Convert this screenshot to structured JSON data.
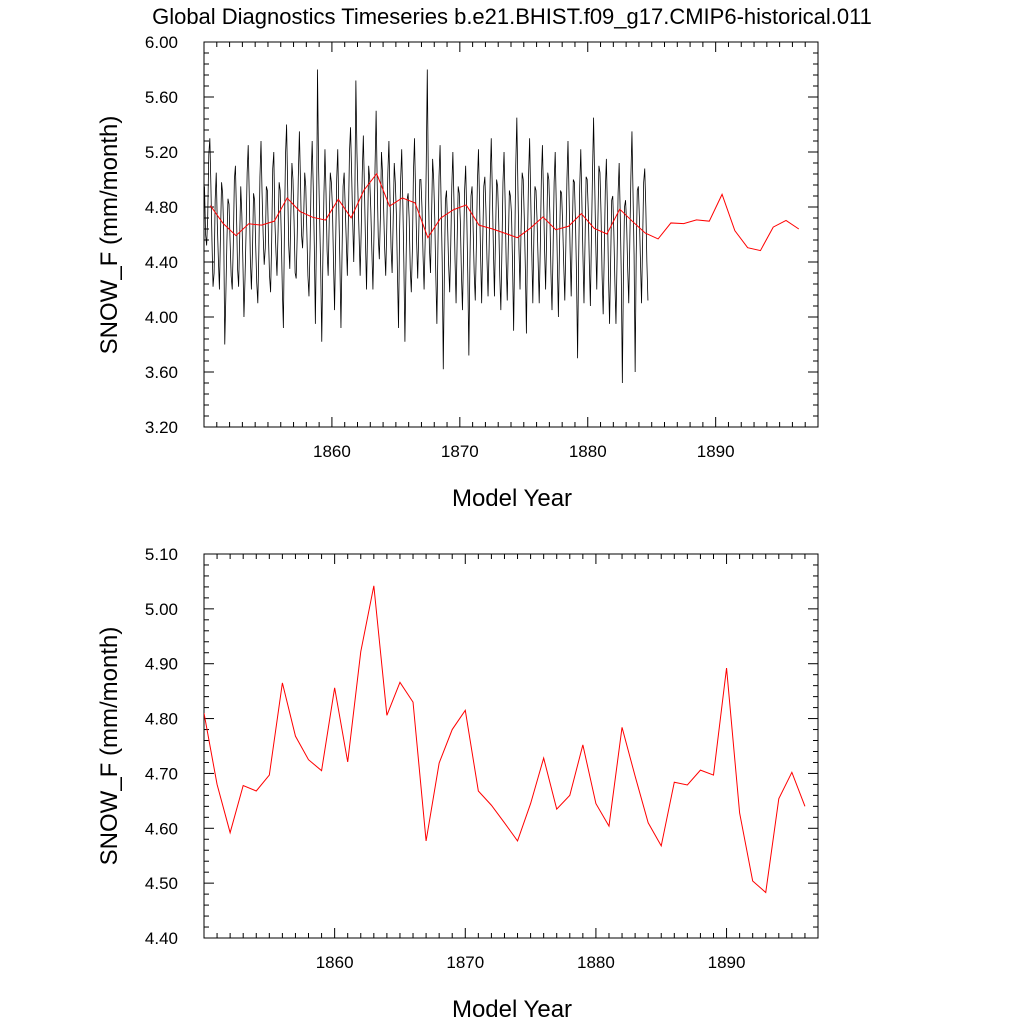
{
  "page": {
    "title": "Global Diagnostics Timeseries b.e21.BHIST.f09_g17.CMIP6-historical.011"
  },
  "colors": {
    "monthly_line": "#000000",
    "annual_line": "#ff0000",
    "axes": "#000000",
    "background": "#ffffff"
  },
  "chart_data": [
    {
      "type": "line",
      "title": "",
      "xlabel": "Model Year",
      "ylabel": "SNOW_F (mm/month)",
      "xlim": [
        1850,
        1898
      ],
      "ylim": [
        3.2,
        6.0
      ],
      "x_ticks": [
        1860,
        1870,
        1880,
        1890
      ],
      "y_ticks": [
        3.2,
        3.6,
        4.0,
        4.4,
        4.8,
        5.2,
        5.6,
        6.0
      ],
      "y_tick_labels": [
        "3.20",
        "3.60",
        "4.00",
        "4.40",
        "4.80",
        "5.20",
        "5.60",
        "6.00"
      ],
      "x_tick_labels": [
        "1860",
        "1870",
        "1880",
        "1890"
      ],
      "grid": false,
      "series": [
        {
          "color": "#000000",
          "monthly": true,
          "x_start": 1850.04,
          "x_step": 0.08333,
          "note_shape": "seasonal cycle",
          "values": [
            4.95,
            4.6,
            4.52,
            4.73,
            5.18,
            5.3,
            4.95,
            4.55,
            4.22,
            4.32,
            4.85,
            5.05,
            4.68,
            4.42,
            4.2,
            4.6,
            4.98,
            4.9,
            4.62,
            3.8,
            4.15,
            4.55,
            4.86,
            4.82,
            4.55,
            4.3,
            4.2,
            4.52,
            5.0,
            5.1,
            4.75,
            4.35,
            4.22,
            4.58,
            4.95,
            4.75,
            4.4,
            4.0,
            4.28,
            4.62,
            5.05,
            5.25,
            4.88,
            4.42,
            4.2,
            4.48,
            4.9,
            4.85,
            4.52,
            4.25,
            4.1,
            4.48,
            5.02,
            5.28,
            4.9,
            4.6,
            4.38,
            4.5,
            4.95,
            4.92,
            4.58,
            4.3,
            4.18,
            4.55,
            5.08,
            5.2,
            4.7,
            4.48,
            4.3,
            4.62,
            4.98,
            4.92,
            4.6,
            4.2,
            3.92,
            4.65,
            5.18,
            5.4,
            4.95,
            4.52,
            4.35,
            4.75,
            5.12,
            5.0,
            4.7,
            4.32,
            4.28,
            4.6,
            5.02,
            5.35,
            5.0,
            4.6,
            4.5,
            4.72,
            5.05,
            4.95,
            4.62,
            4.3,
            4.15,
            4.5,
            5.0,
            5.28,
            4.95,
            4.52,
            3.95,
            4.58,
            5.8,
            5.1,
            4.72,
            4.35,
            3.82,
            4.4,
            4.88,
            5.22,
            4.9,
            4.48,
            4.3,
            4.7,
            5.05,
            4.98,
            4.8,
            4.4,
            4.05,
            4.52,
            5.0,
            5.22,
            4.78,
            4.4,
            3.92,
            4.45,
            4.95,
            5.05,
            4.8,
            4.55,
            4.3,
            4.72,
            5.2,
            5.38,
            5.05,
            4.7,
            4.4,
            4.85,
            5.72,
            5.2,
            4.88,
            4.6,
            4.3,
            4.62,
            5.05,
            5.32,
            4.95,
            4.55,
            4.2,
            4.65,
            5.1,
            5.0,
            4.78,
            4.48,
            4.2,
            4.6,
            5.1,
            5.5,
            4.98,
            4.58,
            4.42,
            4.72,
            5.2,
            5.05,
            4.8,
            4.5,
            4.3,
            4.65,
            5.05,
            5.28,
            4.88,
            4.5,
            4.32,
            4.7,
            5.12,
            4.98,
            4.75,
            4.32,
            3.92,
            4.62,
            5.0,
            5.22,
            4.85,
            4.4,
            3.82,
            4.35,
            4.85,
            4.9,
            4.72,
            4.35,
            4.18,
            4.48,
            5.05,
            5.3,
            4.9,
            4.55,
            4.28,
            4.62,
            5.0,
            5.0,
            4.8,
            4.45,
            4.2,
            4.55,
            5.1,
            5.8,
            4.98,
            4.5,
            4.32,
            4.72,
            5.15,
            5.0,
            4.72,
            4.3,
            3.95,
            4.52,
            5.02,
            5.25,
            4.82,
            4.4,
            3.62,
            4.3,
            4.85,
            4.92,
            4.68,
            4.38,
            4.18,
            4.52,
            4.95,
            5.2,
            4.85,
            4.42,
            4.1,
            4.55,
            4.95,
            4.9,
            4.7,
            4.32,
            4.05,
            4.45,
            4.92,
            5.1,
            4.75,
            4.3,
            3.72,
            4.4,
            4.88,
            4.95,
            4.65,
            4.32,
            4.12,
            4.5,
            4.98,
            5.22,
            4.85,
            4.45,
            4.1,
            4.55,
            4.95,
            5.02,
            4.78,
            4.42,
            4.15,
            4.5,
            5.0,
            5.3,
            4.92,
            4.5,
            4.15,
            4.58,
            5.0,
            4.95,
            4.7,
            4.3,
            4.05,
            4.48,
            4.98,
            5.2,
            4.85,
            4.4,
            4.12,
            4.52,
            4.92,
            4.88,
            4.75,
            4.38,
            3.9,
            4.5,
            5.1,
            5.45,
            4.95,
            4.5,
            4.2,
            4.65,
            5.05,
            5.0,
            4.72,
            4.35,
            3.88,
            4.55,
            5.02,
            5.3,
            4.88,
            4.48,
            4.1,
            4.58,
            4.95,
            4.92,
            4.7,
            4.4,
            4.1,
            4.5,
            5.0,
            5.25,
            4.9,
            4.5,
            4.2,
            4.6,
            5.05,
            5.0,
            4.75,
            4.32,
            4.05,
            4.48,
            4.98,
            5.2,
            4.82,
            4.4,
            4.0,
            4.5,
            4.92,
            4.9,
            4.68,
            4.38,
            4.12,
            4.52,
            5.0,
            5.28,
            4.88,
            4.48,
            4.15,
            4.6,
            5.0,
            4.98,
            4.7,
            4.3,
            3.7,
            4.42,
            4.95,
            5.22,
            4.85,
            4.45,
            4.1,
            4.55,
            5.02,
            5.0,
            4.78,
            4.4,
            4.08,
            4.58,
            5.05,
            5.45,
            5.0,
            4.55,
            4.2,
            4.68,
            5.1,
            5.05,
            4.75,
            4.3,
            4.02,
            4.45,
            4.92,
            5.15,
            4.78,
            4.3,
            3.95,
            4.4,
            4.85,
            4.88,
            4.62,
            4.25,
            3.95,
            4.4,
            4.9,
            5.12,
            4.75,
            4.3,
            3.52,
            4.3,
            4.8,
            4.85,
            4.68,
            4.35,
            4.1,
            4.55,
            5.02,
            5.35,
            4.9,
            4.45,
            3.6,
            4.45,
            4.92,
            4.95,
            4.72,
            4.4,
            4.1,
            4.55,
            4.98,
            5.08,
            4.8,
            4.4,
            4.12
          ]
        },
        {
          "color": "#ff0000",
          "annual": true,
          "x": [
            1850.5,
            1851.5,
            1852.5,
            1853.5,
            1854.5,
            1855.5,
            1856.5,
            1857.5,
            1858.5,
            1859.5,
            1860.5,
            1861.5,
            1862.5,
            1863.5,
            1864.5,
            1865.5,
            1866.5,
            1867.5,
            1868.5,
            1869.5,
            1870.5,
            1871.5,
            1872.5,
            1873.5,
            1874.5,
            1875.5,
            1876.5,
            1877.5,
            1878.5,
            1879.5,
            1880.5,
            1881.5,
            1882.5,
            1883.5,
            1884.5,
            1885.5,
            1886.5,
            1887.5,
            1888.5,
            1889.5,
            1890.5,
            1891.5,
            1892.5,
            1893.5,
            1894.5,
            1895.5,
            1896.5
          ],
          "values": [
            4.81,
            4.68,
            4.592,
            4.678,
            4.668,
            4.697,
            4.865,
            4.768,
            4.725,
            4.705,
            4.856,
            4.721,
            4.922,
            5.042,
            4.806,
            4.866,
            4.83,
            4.577,
            4.719,
            4.78,
            4.815,
            4.668,
            4.642,
            4.61,
            4.577,
            4.645,
            4.728,
            4.635,
            4.66,
            4.752,
            4.645,
            4.604,
            4.784,
            4.695,
            4.61,
            4.568,
            4.684,
            4.679,
            4.706,
            4.697,
            4.892,
            4.628,
            4.504,
            4.483,
            4.654,
            4.702,
            4.64
          ]
        }
      ]
    },
    {
      "type": "line",
      "title": "",
      "xlabel": "Model Year",
      "ylabel": "SNOW_F (mm/month)",
      "xlim": [
        1850,
        1897
      ],
      "ylim": [
        4.4,
        5.1
      ],
      "x_ticks": [
        1860,
        1870,
        1880,
        1890
      ],
      "y_ticks": [
        4.4,
        4.5,
        4.6,
        4.7,
        4.8,
        4.9,
        5.0,
        5.1
      ],
      "y_tick_labels": [
        "4.40",
        "4.50",
        "4.60",
        "4.70",
        "4.80",
        "4.90",
        "5.00",
        "5.10"
      ],
      "x_tick_labels": [
        "1860",
        "1870",
        "1880",
        "1890"
      ],
      "grid": false,
      "series": [
        {
          "color": "#ff0000",
          "annual": true,
          "x": [
            1850.0,
            1851.0,
            1852.0,
            1853.0,
            1854.0,
            1855.0,
            1856.0,
            1857.0,
            1858.0,
            1859.0,
            1860.0,
            1861.0,
            1862.0,
            1863.0,
            1864.0,
            1865.0,
            1866.0,
            1867.0,
            1868.0,
            1869.0,
            1870.0,
            1871.0,
            1872.0,
            1873.0,
            1874.0,
            1875.0,
            1876.0,
            1877.0,
            1878.0,
            1879.0,
            1880.0,
            1881.0,
            1882.0,
            1883.0,
            1884.0,
            1885.0,
            1886.0,
            1887.0,
            1888.0,
            1889.0,
            1890.0,
            1891.0,
            1892.0,
            1893.0,
            1894.0,
            1895.0,
            1896.0
          ],
          "values": [
            4.81,
            4.68,
            4.592,
            4.678,
            4.668,
            4.697,
            4.865,
            4.768,
            4.725,
            4.705,
            4.856,
            4.721,
            4.922,
            5.042,
            4.806,
            4.866,
            4.83,
            4.577,
            4.719,
            4.78,
            4.815,
            4.668,
            4.642,
            4.61,
            4.577,
            4.645,
            4.728,
            4.635,
            4.66,
            4.752,
            4.645,
            4.604,
            4.784,
            4.695,
            4.61,
            4.568,
            4.684,
            4.679,
            4.706,
            4.697,
            4.892,
            4.628,
            4.504,
            4.483,
            4.654,
            4.702,
            4.64
          ]
        }
      ]
    }
  ]
}
